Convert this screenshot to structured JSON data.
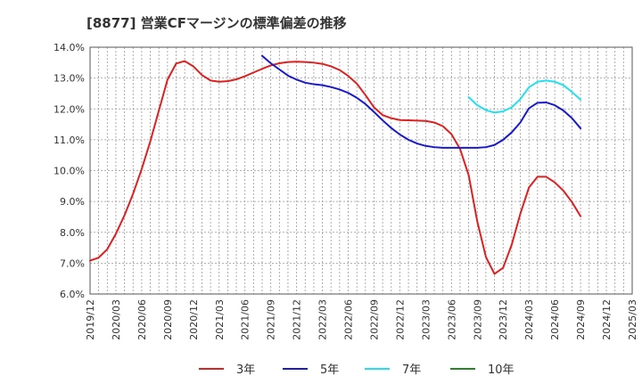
{
  "chart_data": {
    "type": "line",
    "title": "[8877]  営業CFマージンの標準偏差の推移",
    "xlabel": "",
    "ylabel": "",
    "ylim": [
      6.0,
      14.0
    ],
    "yticks": [
      "6.0%",
      "7.0%",
      "8.0%",
      "9.0%",
      "10.0%",
      "11.0%",
      "12.0%",
      "13.0%",
      "14.0%"
    ],
    "xticks": [
      "2019/12",
      "2020/03",
      "2020/06",
      "2020/09",
      "2020/12",
      "2021/03",
      "2021/06",
      "2021/09",
      "2021/12",
      "2022/03",
      "2022/06",
      "2022/09",
      "2022/12",
      "2023/03",
      "2023/06",
      "2023/09",
      "2023/12",
      "2024/03",
      "2024/06",
      "2024/09",
      "2024/12",
      "2025/03"
    ],
    "grid": true,
    "legend_position": "bottom",
    "series": [
      {
        "name": "3年",
        "color": "#dd2020",
        "x": [
          "2019/12",
          "2020/01",
          "2020/02",
          "2020/03",
          "2020/04",
          "2020/05",
          "2020/06",
          "2020/07",
          "2020/08",
          "2020/09",
          "2020/10",
          "2020/11",
          "2020/12",
          "2021/01",
          "2021/02",
          "2021/03",
          "2021/04",
          "2021/05",
          "2021/06",
          "2021/07",
          "2021/08",
          "2021/09",
          "2021/10",
          "2021/11",
          "2021/12",
          "2022/01",
          "2022/02",
          "2022/03",
          "2022/04",
          "2022/05",
          "2022/06",
          "2022/07",
          "2022/08",
          "2022/09",
          "2022/10",
          "2022/11",
          "2022/12",
          "2023/01",
          "2023/02",
          "2023/03",
          "2023/04",
          "2023/05",
          "2023/06",
          "2023/07",
          "2023/08",
          "2023/09",
          "2023/10",
          "2023/11",
          "2023/12",
          "2024/01",
          "2024/02",
          "2024/03",
          "2024/04",
          "2024/05",
          "2024/06",
          "2024/07",
          "2024/08",
          "2024/09"
        ],
        "values": [
          7.08,
          7.18,
          7.45,
          7.95,
          8.55,
          9.25,
          10.05,
          10.95,
          11.95,
          12.95,
          13.47,
          13.55,
          13.38,
          13.1,
          12.92,
          12.88,
          12.9,
          12.96,
          13.06,
          13.18,
          13.3,
          13.41,
          13.48,
          13.52,
          13.53,
          13.52,
          13.5,
          13.46,
          13.38,
          13.26,
          13.07,
          12.82,
          12.45,
          12.05,
          11.8,
          11.7,
          11.64,
          11.63,
          11.62,
          11.61,
          11.56,
          11.44,
          11.18,
          10.7,
          9.85,
          8.35,
          7.2,
          6.65,
          6.85,
          7.6,
          8.6,
          9.45,
          9.8,
          9.8,
          9.62,
          9.35,
          8.98,
          8.52
        ]
      },
      {
        "name": "5年",
        "color": "#1a1acc",
        "x": [
          "2021/08",
          "2021/09",
          "2021/10",
          "2021/11",
          "2021/12",
          "2022/01",
          "2022/02",
          "2022/03",
          "2022/04",
          "2022/05",
          "2022/06",
          "2022/07",
          "2022/08",
          "2022/09",
          "2022/10",
          "2022/11",
          "2022/12",
          "2023/01",
          "2023/02",
          "2023/03",
          "2023/04",
          "2023/05",
          "2023/06",
          "2023/07",
          "2023/08",
          "2023/09",
          "2023/10",
          "2023/11",
          "2023/12",
          "2024/01",
          "2024/02",
          "2024/03",
          "2024/04",
          "2024/05",
          "2024/06",
          "2024/07",
          "2024/08",
          "2024/09"
        ],
        "values": [
          13.72,
          13.48,
          13.28,
          13.08,
          12.95,
          12.85,
          12.8,
          12.77,
          12.71,
          12.63,
          12.52,
          12.36,
          12.16,
          11.9,
          11.63,
          11.38,
          11.17,
          11.0,
          10.88,
          10.8,
          10.76,
          10.74,
          10.74,
          10.74,
          10.74,
          10.74,
          10.76,
          10.83,
          11.0,
          11.24,
          11.56,
          12.02,
          12.2,
          12.21,
          12.12,
          11.95,
          11.7,
          11.37
        ]
      },
      {
        "name": "7年",
        "color": "#22e0ee",
        "x": [
          "2023/08",
          "2023/09",
          "2023/10",
          "2023/11",
          "2023/12",
          "2024/01",
          "2024/02",
          "2024/03",
          "2024/04",
          "2024/05",
          "2024/06",
          "2024/07",
          "2024/08",
          "2024/09"
        ],
        "values": [
          12.38,
          12.12,
          11.96,
          11.88,
          11.92,
          12.05,
          12.32,
          12.7,
          12.88,
          12.92,
          12.88,
          12.77,
          12.55,
          12.3
        ]
      },
      {
        "name": "10年",
        "color": "#228822",
        "x": [],
        "values": []
      }
    ]
  }
}
